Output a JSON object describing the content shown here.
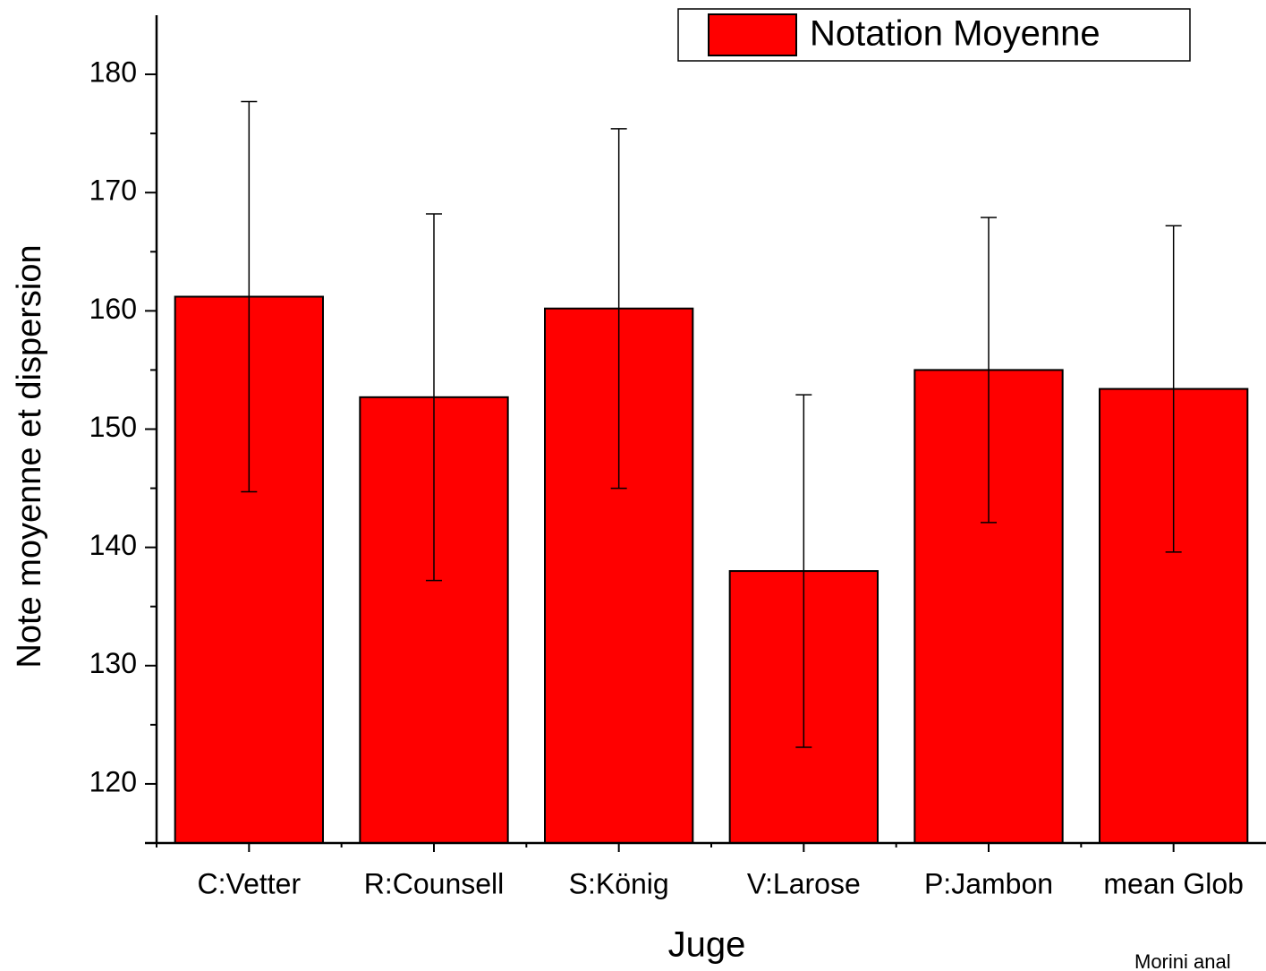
{
  "chart_data": {
    "type": "bar",
    "x_label": "Juge",
    "y_label": "Note moyenne et dispersion",
    "annotation": "Morini anal",
    "categories": [
      "C:Vetter",
      "R:Counsell",
      "S:König",
      "V:Larose",
      "P:Jambon",
      "mean Glob"
    ],
    "series": [
      {
        "name": "Notation Moyenne",
        "color": "#ff0000",
        "values": [
          161.2,
          152.7,
          160.2,
          138.0,
          155.0,
          153.4
        ],
        "errors": [
          16.5,
          15.5,
          15.2,
          14.9,
          12.9,
          13.8
        ]
      }
    ],
    "ylim": [
      115,
      185
    ],
    "yticks": [
      120,
      130,
      140,
      150,
      160,
      170,
      180
    ],
    "legend": "top-right"
  }
}
